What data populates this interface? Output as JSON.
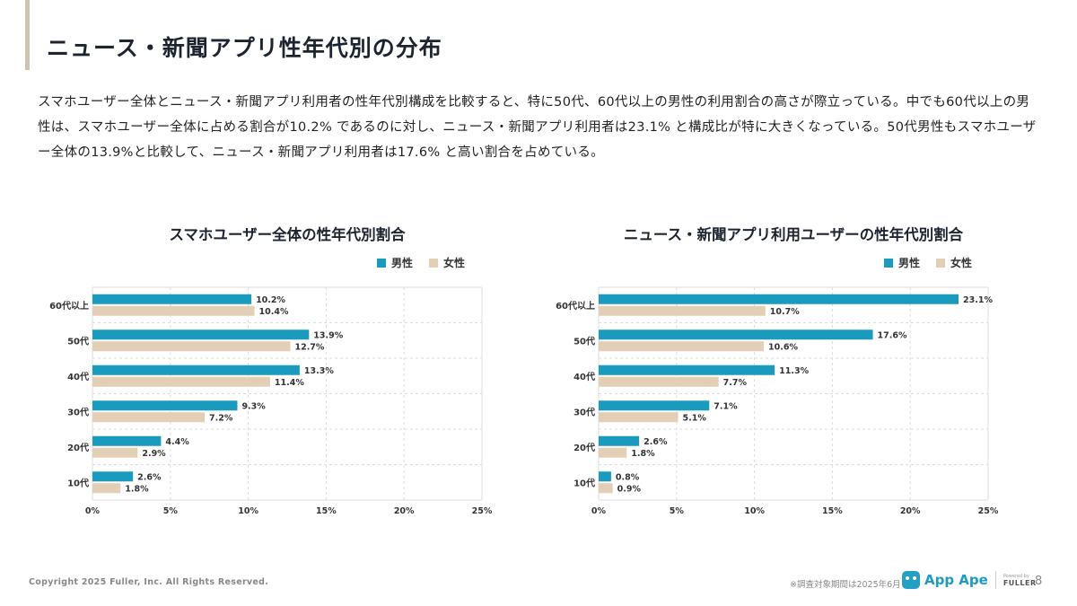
{
  "page": {
    "title": "ニュース・新聞アプリ性年代別の分布",
    "description": "スマホユーザー全体とニュース・新聞アプリ利用者の性年代別構成を比較すると、特に50代、60代以上の男性の利用割合の高さが際立っている。中でも60代以上の男性は、スマホユーザー全体に占める割合が10.2% であるのに対し、ニュース・新聞アプリ利用者は23.1% と構成比が特に大きくなっている。50代男性もスマホユーザー全体の13.9%と比較して、ニュース・新聞アプリ利用者は17.6% と高い割合を占めている。"
  },
  "colors": {
    "male": "#1a9bbd",
    "female": "#e2cfb6",
    "grid": "#dddddd",
    "text": "#333333"
  },
  "legend": {
    "male": "男性",
    "female": "女性"
  },
  "chart_data": [
    {
      "type": "bar",
      "orientation": "horizontal",
      "title": "スマホユーザー全体の性年代別割合",
      "categories": [
        "60代以上",
        "50代",
        "40代",
        "30代",
        "20代",
        "10代"
      ],
      "series": [
        {
          "name": "男性",
          "values": [
            10.2,
            13.9,
            13.3,
            9.3,
            4.4,
            2.6
          ]
        },
        {
          "name": "女性",
          "values": [
            10.4,
            12.7,
            11.4,
            7.2,
            2.9,
            1.8
          ]
        }
      ],
      "xlim": [
        0,
        25
      ],
      "xticks": [
        0,
        5,
        10,
        15,
        20,
        25
      ],
      "tick_suffix": "%",
      "grid": true,
      "legend_position": "top-right"
    },
    {
      "type": "bar",
      "orientation": "horizontal",
      "title": "ニュース・新聞アプリ利用ユーザーの性年代別割合",
      "categories": [
        "60代以上",
        "50代",
        "40代",
        "30代",
        "20代",
        "10代"
      ],
      "series": [
        {
          "name": "男性",
          "values": [
            23.1,
            17.6,
            11.3,
            7.1,
            2.6,
            0.8
          ]
        },
        {
          "name": "女性",
          "values": [
            10.7,
            10.6,
            7.7,
            5.1,
            1.8,
            0.9
          ]
        }
      ],
      "xlim": [
        0,
        25
      ],
      "xticks": [
        0,
        5,
        10,
        15,
        20,
        25
      ],
      "tick_suffix": "%",
      "grid": true,
      "legend_position": "top-right"
    }
  ],
  "footer": {
    "copyright": "Copyright 2025 Fuller, Inc. All Rights Reserved.",
    "note": "※調査対象期間は2025年6月",
    "logo_text": "App Ape",
    "powered_by": "Powered by",
    "brand": "FULLER",
    "page_number": "8"
  }
}
